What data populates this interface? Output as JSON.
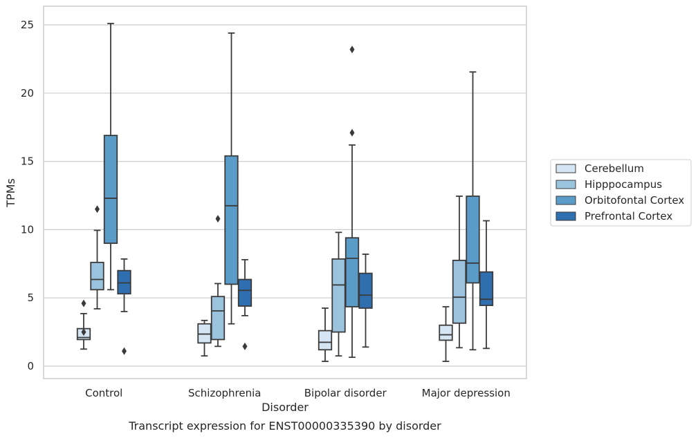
{
  "chart_data": {
    "type": "box",
    "xlabel": "Disorder",
    "ylabel": "TPMs",
    "caption": "Transcript expression for ENST00000335390 by disorder",
    "ylim": [
      -0.8,
      26.4
    ],
    "yticks": [
      0,
      5,
      10,
      15,
      20,
      25
    ],
    "grid": "horizontal",
    "legend_position": "right",
    "categories": [
      "Control",
      "Schizophrenia",
      "Bipolar disorder",
      "Major depression"
    ],
    "series": [
      {
        "name": "Cerebellum",
        "color": "#d6e5f3",
        "boxes": [
          {
            "min": 1.25,
            "q1": 1.95,
            "median": 2.1,
            "q3": 2.75,
            "max": 3.85,
            "outliers": [
              4.6,
              2.5
            ]
          },
          {
            "min": 0.75,
            "q1": 1.7,
            "median": 2.35,
            "q3": 3.1,
            "max": 3.35,
            "outliers": []
          },
          {
            "min": 0.35,
            "q1": 1.2,
            "median": 1.75,
            "q3": 2.6,
            "max": 4.25,
            "outliers": []
          },
          {
            "min": 0.35,
            "q1": 1.9,
            "median": 2.3,
            "q3": 3.0,
            "max": 4.35,
            "outliers": []
          }
        ]
      },
      {
        "name": "Hipppocampus",
        "color": "#9cc3de",
        "boxes": [
          {
            "min": 4.2,
            "q1": 5.6,
            "median": 6.35,
            "q3": 7.6,
            "max": 9.95,
            "outliers": [
              11.5
            ]
          },
          {
            "min": 1.45,
            "q1": 1.95,
            "median": 4.05,
            "q3": 5.1,
            "max": 6.05,
            "outliers": [
              10.8
            ]
          },
          {
            "min": 0.75,
            "q1": 2.5,
            "median": 5.95,
            "q3": 7.85,
            "max": 9.8,
            "outliers": []
          },
          {
            "min": 1.35,
            "q1": 3.15,
            "median": 5.05,
            "q3": 7.75,
            "max": 12.45,
            "outliers": []
          }
        ]
      },
      {
        "name": "Orbitofontal Cortex",
        "color": "#5a9bc8",
        "boxes": [
          {
            "min": 5.6,
            "q1": 9.0,
            "median": 12.3,
            "q3": 16.9,
            "max": 25.1,
            "outliers": []
          },
          {
            "min": 3.1,
            "q1": 6.0,
            "median": 11.75,
            "q3": 15.4,
            "max": 24.4,
            "outliers": []
          },
          {
            "min": 0.65,
            "q1": 4.35,
            "median": 7.9,
            "q3": 9.4,
            "max": 16.2,
            "outliers": [
              17.1,
              23.2
            ]
          },
          {
            "min": 1.2,
            "q1": 6.1,
            "median": 7.55,
            "q3": 12.45,
            "max": 21.55,
            "outliers": []
          }
        ]
      },
      {
        "name": "Prefrontal Cortex",
        "color": "#2f6eaf",
        "boxes": [
          {
            "min": 4.0,
            "q1": 5.3,
            "median": 6.1,
            "q3": 7.0,
            "max": 7.85,
            "outliers": [
              1.1
            ]
          },
          {
            "min": 3.7,
            "q1": 4.4,
            "median": 5.55,
            "q3": 6.35,
            "max": 7.8,
            "outliers": [
              1.45
            ]
          },
          {
            "min": 1.4,
            "q1": 4.25,
            "median": 5.2,
            "q3": 6.8,
            "max": 8.2,
            "outliers": []
          },
          {
            "min": 1.3,
            "q1": 4.45,
            "median": 4.9,
            "q3": 6.9,
            "max": 10.65,
            "outliers": []
          }
        ]
      }
    ]
  }
}
